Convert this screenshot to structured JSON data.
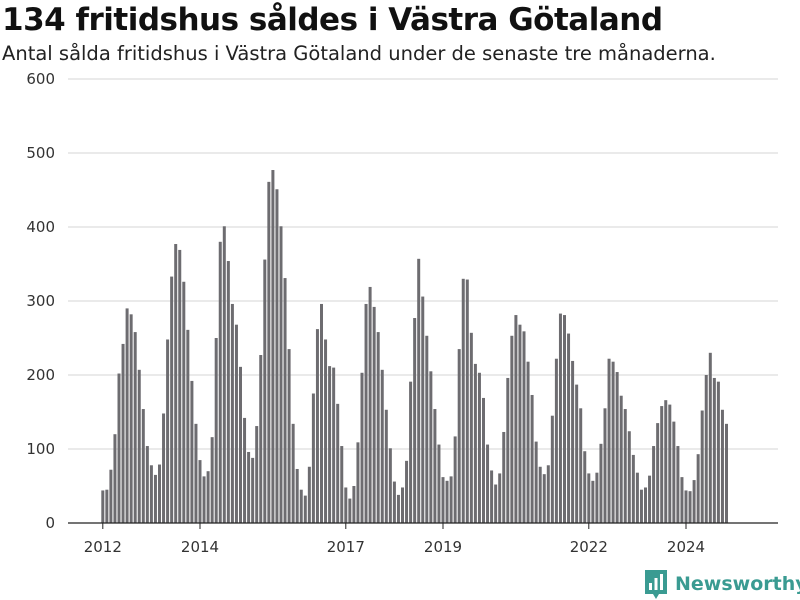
{
  "header": {
    "title": "134 fritidshus såldes i Västra Götaland",
    "subtitle": "Antal sålda fritidshus i Västra Götaland under de senaste tre månaderna."
  },
  "brand": {
    "name": "Newsworthy",
    "color": "#3a9b92",
    "icon": "newsworthy-logo-icon"
  },
  "colors": {
    "bar": "#6d6c70",
    "highlight": "#1a9e8f",
    "grid": "#d6d6d6"
  },
  "chart_data": {
    "type": "bar",
    "ylim": [
      0,
      600
    ],
    "y_ticks": [
      0,
      100,
      200,
      300,
      400,
      500,
      600
    ],
    "x_ticks": [
      {
        "label": "2012",
        "index": 0
      },
      {
        "label": "2014",
        "index": 24
      },
      {
        "label": "2017",
        "index": 60
      },
      {
        "label": "2019",
        "index": 84
      },
      {
        "label": "2022",
        "index": 120
      },
      {
        "label": "2024",
        "index": 144
      }
    ],
    "grid": true,
    "values": [
      44,
      45,
      72,
      120,
      202,
      242,
      290,
      282,
      258,
      207,
      154,
      104,
      78,
      65,
      79,
      148,
      248,
      333,
      377,
      369,
      326,
      261,
      192,
      134,
      85,
      63,
      70,
      116,
      250,
      380,
      401,
      354,
      296,
      268,
      211,
      142,
      96,
      88,
      131,
      227,
      356,
      461,
      477,
      451,
      401,
      331,
      235,
      134,
      73,
      45,
      37,
      76,
      175,
      262,
      296,
      248,
      212,
      210,
      161,
      104,
      48,
      33,
      50,
      109,
      203,
      296,
      319,
      292,
      258,
      207,
      153,
      101,
      56,
      38,
      48,
      84,
      191,
      277,
      357,
      306,
      253,
      205,
      154,
      106,
      62,
      57,
      63,
      117,
      235,
      330,
      329,
      257,
      215,
      203,
      169,
      106,
      71,
      52,
      67,
      123,
      196,
      253,
      281,
      268,
      259,
      218,
      173,
      110,
      76,
      66,
      78,
      145,
      222,
      283,
      281,
      256,
      219,
      187,
      155,
      97,
      67,
      57,
      68,
      107,
      155,
      222,
      218,
      204,
      172,
      154,
      124,
      92,
      68,
      45,
      48,
      64,
      104,
      135,
      158,
      166,
      160,
      137,
      104,
      62,
      44,
      43,
      58,
      93,
      152,
      200,
      230,
      196,
      191,
      153,
      134
    ],
    "highlight_index": 156,
    "annotation": "134"
  }
}
